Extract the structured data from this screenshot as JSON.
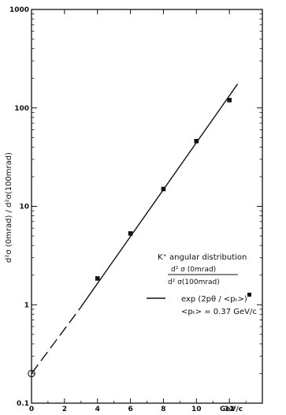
{
  "chart_data": {
    "type": "scatter",
    "xscale": "linear",
    "yscale": "log",
    "xlim": [
      0,
      14
    ],
    "ylim": [
      0.1,
      1000
    ],
    "x_ticks": [
      "0",
      "2",
      "4",
      "6",
      "8",
      "10",
      "12"
    ],
    "x_unit": "GeV/c",
    "y_ticks": [
      "0.1",
      "1",
      "10",
      "100",
      "1000"
    ],
    "ylabel": "d²σ (0mrad) / d²σ(100mrad)",
    "xlabel": "",
    "title": "",
    "series": [
      {
        "type": "scatter",
        "marker": "square",
        "x": [
          4,
          6,
          8,
          10,
          12
        ],
        "y": [
          1.85,
          5.3,
          15,
          46,
          120
        ]
      },
      {
        "type": "line",
        "style": "solid",
        "x": [
          2.9,
          12.5
        ],
        "y": [
          0.9,
          175
        ]
      },
      {
        "type": "line",
        "style": "dashed",
        "x": [
          0,
          2.9
        ],
        "y": [
          0.2,
          0.9
        ]
      },
      {
        "type": "scatter",
        "marker": "open-circle",
        "x": [
          0
        ],
        "y": [
          0.2
        ]
      }
    ],
    "legend": {
      "placement": "right-middle",
      "title": "K⁺ angular distribution",
      "ratio_num": "d² σ (0mrad)",
      "ratio_den": "d² σ(100mrad)",
      "fit_label": "exp (2pθ / <pₜ>)",
      "fit_param": "<pₜ> = 0.37 GeV/c"
    }
  }
}
